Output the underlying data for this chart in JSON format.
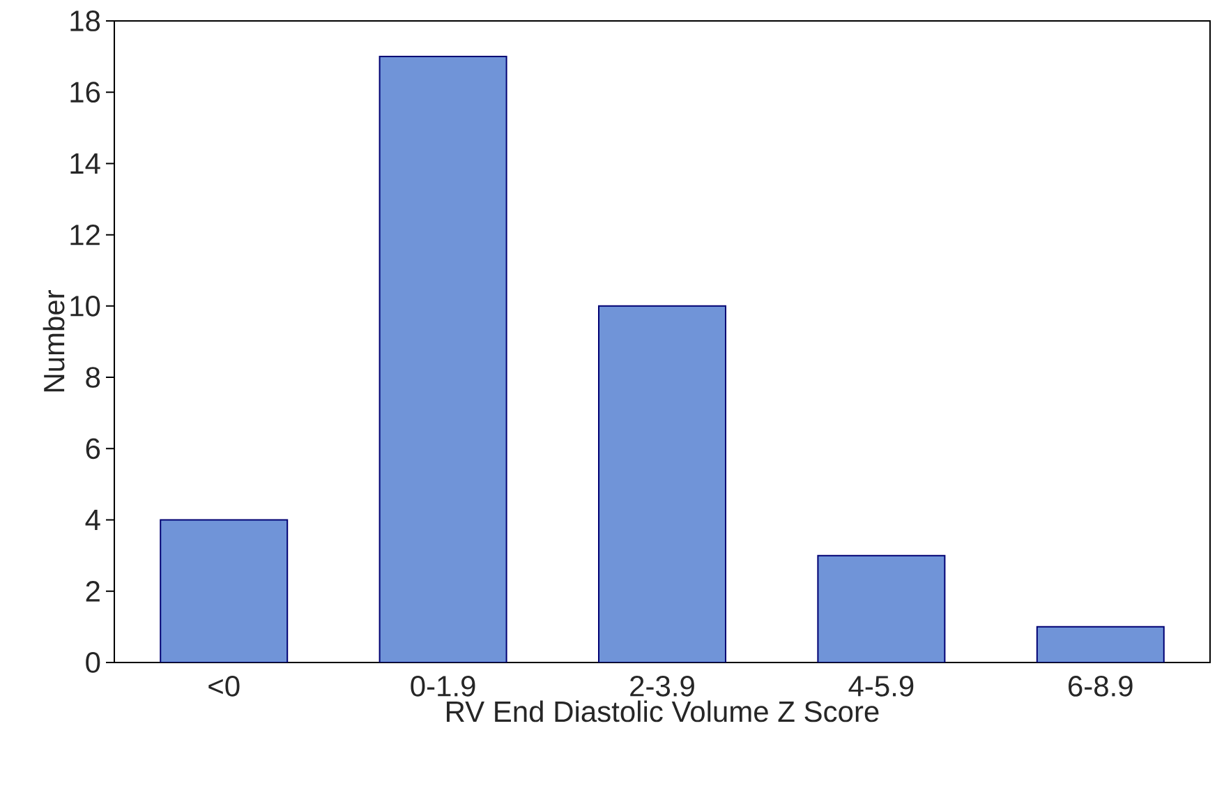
{
  "chart_data": {
    "type": "bar",
    "xlabel": "RV End Diastolic Volume Z Score",
    "ylabel": "Number",
    "categories": [
      "<0",
      "0-1.9",
      "2-3.9",
      "4-5.9",
      "6-8.9"
    ],
    "values": [
      4,
      17,
      10,
      3,
      1
    ],
    "color": "#7094d8",
    "ylim": [
      0,
      18
    ],
    "yticks": [
      0,
      2,
      4,
      6,
      8,
      10,
      12,
      14,
      16,
      18
    ],
    "grid": false
  }
}
